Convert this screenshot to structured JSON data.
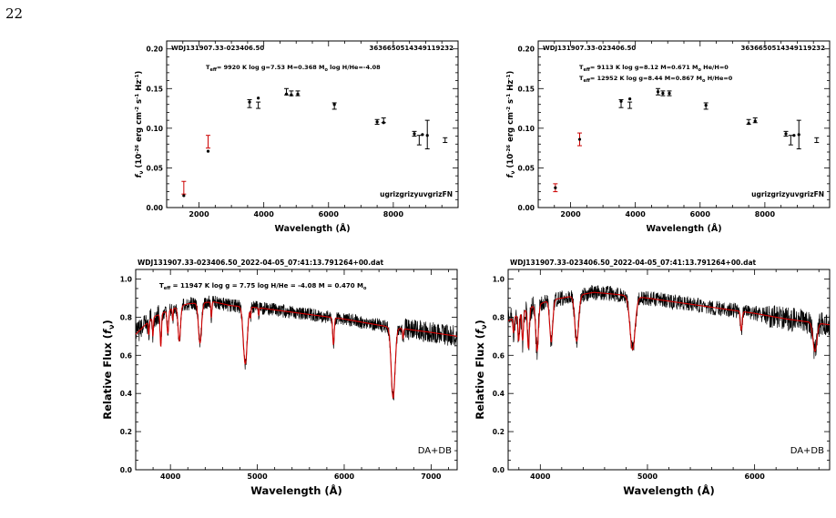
{
  "page_number": "22",
  "chart_data": [
    {
      "type": "scatter",
      "id": "sed_left",
      "object_label": "WDJ131907.33-023406.50",
      "source_id": "3636650514349119232",
      "fit_label": "T_eff= 9920 K log g=7.53 M=0.368 M_o log H/He=-4.08",
      "fit_label_pre": "T",
      "fit_label_sub": "eff",
      "fit_label_post": "= 9920 K log g=7.53 M=0.368 M",
      "fit_label_sub2": "o",
      "fit_label_end": " log H/He=-4.08",
      "filters_label": "ugrizgrizyuvgrizFN",
      "xlabel": "Wavelength (Å)",
      "ylabel": "f_ν (10^-26 erg cm^-2 s^-1 Hz^-1)",
      "ylabel_text": "(10",
      "ylabel_text2": " erg cm",
      "ylabel_text3": " s",
      "ylabel_text4": " Hz",
      "ylabel_text5": ")",
      "xlim": [
        1000,
        10000
      ],
      "ylim": [
        0,
        0.21
      ],
      "xticks": [
        2000,
        4000,
        6000,
        8000
      ],
      "yticks": [
        0.0,
        0.05,
        0.1,
        0.15,
        0.2
      ],
      "ytick_labels": [
        "0.00",
        "0.05",
        "0.10",
        "0.15",
        "0.20"
      ],
      "observed": [
        {
          "x": 1530,
          "y": 0.025,
          "err": 0.008,
          "color": "#cc0000"
        },
        {
          "x": 2280,
          "y": 0.083,
          "err": 0.008,
          "color": "#cc0000"
        },
        {
          "x": 3560,
          "y": 0.131,
          "err": 0.005,
          "color": "#000000"
        },
        {
          "x": 3830,
          "y": 0.129,
          "err": 0.004,
          "color": "#000000"
        },
        {
          "x": 4700,
          "y": 0.146,
          "err": 0.004,
          "color": "#000000"
        },
        {
          "x": 4850,
          "y": 0.144,
          "err": 0.003,
          "color": "#000000"
        },
        {
          "x": 5050,
          "y": 0.144,
          "err": 0.003,
          "color": "#000000"
        },
        {
          "x": 6180,
          "y": 0.128,
          "err": 0.004,
          "color": "#000000"
        },
        {
          "x": 7500,
          "y": 0.108,
          "err": 0.003,
          "color": "#000000"
        },
        {
          "x": 7700,
          "y": 0.11,
          "err": 0.003,
          "color": "#000000"
        },
        {
          "x": 8650,
          "y": 0.093,
          "err": 0.003,
          "color": "#000000"
        },
        {
          "x": 8800,
          "y": 0.085,
          "err": 0.006,
          "color": "#000000"
        },
        {
          "x": 9050,
          "y": 0.092,
          "err": 0.018,
          "color": "#000000"
        },
        {
          "x": 9600,
          "y": 0.085,
          "err": 0.003,
          "color": "#000000"
        }
      ],
      "model": [
        {
          "x": 1530,
          "y": 0.015
        },
        {
          "x": 2280,
          "y": 0.071
        },
        {
          "x": 3560,
          "y": 0.133
        },
        {
          "x": 3830,
          "y": 0.138
        },
        {
          "x": 4700,
          "y": 0.143
        },
        {
          "x": 4850,
          "y": 0.142
        },
        {
          "x": 5050,
          "y": 0.143
        },
        {
          "x": 6180,
          "y": 0.13
        },
        {
          "x": 7500,
          "y": 0.108
        },
        {
          "x": 7700,
          "y": 0.107
        },
        {
          "x": 8650,
          "y": 0.093
        },
        {
          "x": 8900,
          "y": 0.092
        },
        {
          "x": 9050,
          "y": 0.091
        }
      ]
    },
    {
      "type": "scatter",
      "id": "sed_right",
      "object_label": "WDJ131907.33-023406.50",
      "source_id": "3636650514349119232",
      "fit_label_1_pre": "T",
      "fit_label_1_sub": "eff",
      "fit_label_1_mid": "=  9113 K log g=8.12 M=0.671 M",
      "fit_label_1_sub2": "o",
      "fit_label_1_end": " He/H=0",
      "fit_label_2_pre": "T",
      "fit_label_2_sub": "eff",
      "fit_label_2_mid": "= 12952 K log g=8.44 M=0.867 M",
      "fit_label_2_sub2": "o",
      "fit_label_2_end": " H/He=0",
      "filters_label": "ugrizgrizyuvgrizFN",
      "xlabel": "Wavelength (Å)",
      "ylabel": "f_ν (10^-26 erg cm^-2 s^-1 Hz^-1)",
      "xlim": [
        1000,
        10000
      ],
      "ylim": [
        0,
        0.21
      ],
      "xticks": [
        2000,
        4000,
        6000,
        8000
      ],
      "yticks": [
        0.0,
        0.05,
        0.1,
        0.15,
        0.2
      ],
      "ytick_labels": [
        "0.00",
        "0.05",
        "0.10",
        "0.15",
        "0.20"
      ],
      "observed": [
        {
          "x": 1530,
          "y": 0.025,
          "err": 0.005,
          "color": "#cc0000"
        },
        {
          "x": 2280,
          "y": 0.086,
          "err": 0.008,
          "color": "#cc0000"
        },
        {
          "x": 3560,
          "y": 0.131,
          "err": 0.005,
          "color": "#000000"
        },
        {
          "x": 3830,
          "y": 0.129,
          "err": 0.004,
          "color": "#000000"
        },
        {
          "x": 4700,
          "y": 0.146,
          "err": 0.004,
          "color": "#000000"
        },
        {
          "x": 4850,
          "y": 0.144,
          "err": 0.003,
          "color": "#000000"
        },
        {
          "x": 5050,
          "y": 0.144,
          "err": 0.003,
          "color": "#000000"
        },
        {
          "x": 6180,
          "y": 0.128,
          "err": 0.004,
          "color": "#000000"
        },
        {
          "x": 7500,
          "y": 0.108,
          "err": 0.003,
          "color": "#000000"
        },
        {
          "x": 7700,
          "y": 0.11,
          "err": 0.003,
          "color": "#000000"
        },
        {
          "x": 8650,
          "y": 0.093,
          "err": 0.003,
          "color": "#000000"
        },
        {
          "x": 8800,
          "y": 0.085,
          "err": 0.006,
          "color": "#000000"
        },
        {
          "x": 9050,
          "y": 0.092,
          "err": 0.018,
          "color": "#000000"
        },
        {
          "x": 9600,
          "y": 0.085,
          "err": 0.003,
          "color": "#000000"
        }
      ],
      "model": [
        {
          "x": 1530,
          "y": 0.025
        },
        {
          "x": 2280,
          "y": 0.086
        },
        {
          "x": 3560,
          "y": 0.134
        },
        {
          "x": 3830,
          "y": 0.137
        },
        {
          "x": 4700,
          "y": 0.146
        },
        {
          "x": 4850,
          "y": 0.144
        },
        {
          "x": 5050,
          "y": 0.144
        },
        {
          "x": 6180,
          "y": 0.129
        },
        {
          "x": 7500,
          "y": 0.106
        },
        {
          "x": 7700,
          "y": 0.109
        },
        {
          "x": 8650,
          "y": 0.093
        },
        {
          "x": 8900,
          "y": 0.091
        },
        {
          "x": 9050,
          "y": 0.092
        }
      ]
    },
    {
      "type": "line",
      "id": "spec_left",
      "title": "WDJ131907.33-023406.50_2022-04-05_07:41:13.791264+00.dat",
      "fit_label_pre": "T",
      "fit_label_sub": "eff",
      "fit_label_mid": " = 11947 K   log g = 7.75   log H/He = -4.08   M = 0.470 M",
      "fit_label_sub2": "o",
      "class_label": "DA+DB",
      "xlabel": "Wavelength (Å)",
      "ylabel": "Relative Flux (f_ν)",
      "ylabel_text": "Relative Flux (",
      "ylabel_f": "f",
      "ylabel_nu": "ν",
      "ylabel_close": ")",
      "xlim": [
        3600,
        7300
      ],
      "ylim": [
        0,
        1.05
      ],
      "xticks": [
        4000,
        5000,
        6000,
        7000
      ],
      "yticks": [
        0.0,
        0.2,
        0.4,
        0.6,
        0.8,
        1.0
      ],
      "ytick_labels": [
        "0.0",
        "0.2",
        "0.4",
        "0.6",
        "0.8",
        "1.0"
      ],
      "continuum": [
        [
          3600,
          0.71
        ],
        [
          3800,
          0.8
        ],
        [
          4000,
          0.84
        ],
        [
          4200,
          0.87
        ],
        [
          4500,
          0.88
        ],
        [
          4700,
          0.86
        ],
        [
          5000,
          0.85
        ],
        [
          5500,
          0.82
        ],
        [
          6000,
          0.79
        ],
        [
          6500,
          0.75
        ],
        [
          7000,
          0.72
        ],
        [
          7300,
          0.7
        ]
      ],
      "lines": [
        {
          "x": 3750,
          "depth": 0.07,
          "w": 6
        },
        {
          "x": 3798,
          "depth": 0.1,
          "w": 6
        },
        {
          "x": 3889,
          "depth": 0.17,
          "w": 8
        },
        {
          "x": 3970,
          "depth": 0.12,
          "w": 9
        },
        {
          "x": 4026,
          "depth": 0.06,
          "w": 5
        },
        {
          "x": 4102,
          "depth": 0.18,
          "w": 14
        },
        {
          "x": 4340,
          "depth": 0.21,
          "w": 18
        },
        {
          "x": 4471,
          "depth": 0.08,
          "w": 6
        },
        {
          "x": 4861,
          "depth": 0.3,
          "w": 22
        },
        {
          "x": 4922,
          "depth": 0.05,
          "w": 5
        },
        {
          "x": 5016,
          "depth": 0.04,
          "w": 5
        },
        {
          "x": 5876,
          "depth": 0.14,
          "w": 9
        },
        {
          "x": 6563,
          "depth": 0.37,
          "w": 22
        },
        {
          "x": 6678,
          "depth": 0.05,
          "w": 6
        }
      ],
      "noise": 0.035
    },
    {
      "type": "line",
      "id": "spec_right",
      "title": "WDJ131907.33-023406.50_2022-04-05_07:41:13.791264+00.dat",
      "class_label": "DA+DB",
      "xlabel": "Wavelength (Å)",
      "ylabel": "Relative Flux (f_ν)",
      "ylabel_text": "Relative Flux (",
      "ylabel_f": "f",
      "ylabel_nu": "ν",
      "ylabel_close": ")",
      "xlim": [
        3700,
        6700
      ],
      "ylim": [
        0,
        1.05
      ],
      "xticks": [
        4000,
        5000,
        6000
      ],
      "yticks": [
        0.0,
        0.2,
        0.4,
        0.6,
        0.8,
        1.0
      ],
      "ytick_labels": [
        "0.0",
        "0.2",
        "0.4",
        "0.6",
        "0.8",
        "1.0"
      ],
      "continuum": [
        [
          3700,
          0.78
        ],
        [
          3900,
          0.85
        ],
        [
          4100,
          0.89
        ],
        [
          4300,
          0.91
        ],
        [
          4500,
          0.93
        ],
        [
          4700,
          0.92
        ],
        [
          5000,
          0.9
        ],
        [
          5500,
          0.86
        ],
        [
          6000,
          0.82
        ],
        [
          6300,
          0.79
        ],
        [
          6700,
          0.76
        ]
      ],
      "lines": [
        {
          "x": 3750,
          "depth": 0.08,
          "w": 6
        },
        {
          "x": 3798,
          "depth": 0.14,
          "w": 7
        },
        {
          "x": 3835,
          "depth": 0.15,
          "w": 7
        },
        {
          "x": 3889,
          "depth": 0.21,
          "w": 9
        },
        {
          "x": 3970,
          "depth": 0.24,
          "w": 12
        },
        {
          "x": 4102,
          "depth": 0.22,
          "w": 14
        },
        {
          "x": 4340,
          "depth": 0.24,
          "w": 18
        },
        {
          "x": 4861,
          "depth": 0.28,
          "w": 24
        },
        {
          "x": 5876,
          "depth": 0.1,
          "w": 8
        },
        {
          "x": 6563,
          "depth": 0.15,
          "w": 18
        }
      ],
      "noise": 0.04
    }
  ]
}
